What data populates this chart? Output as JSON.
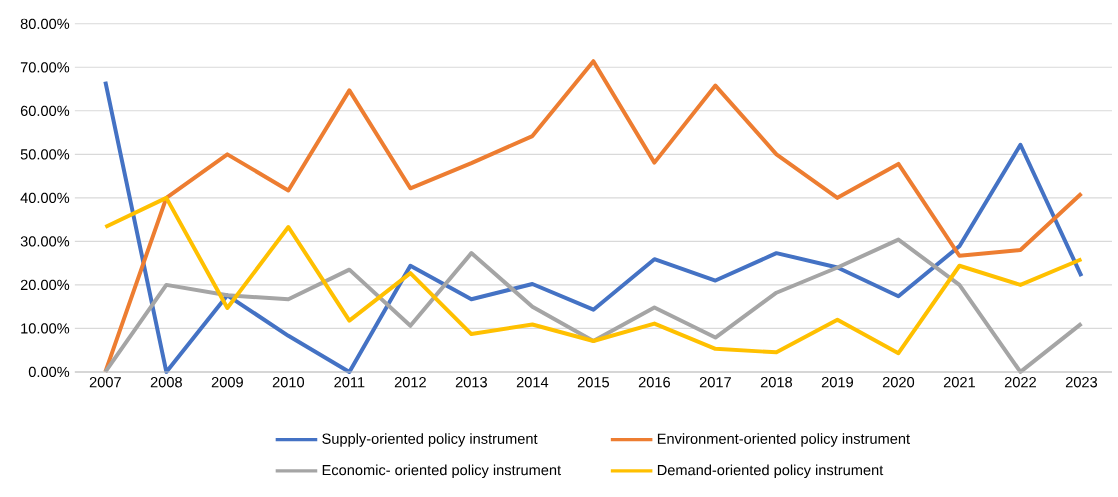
{
  "chart_data": {
    "type": "line",
    "categories": [
      "2007",
      "2008",
      "2009",
      "2010",
      "2011",
      "2012",
      "2013",
      "2014",
      "2015",
      "2016",
      "2017",
      "2018",
      "2019",
      "2020",
      "2021",
      "2022",
      "2023"
    ],
    "series": [
      {
        "name": "Supply-oriented policy instrument",
        "color": "#4472c4",
        "values": [
          66.7,
          0,
          17.6,
          8.3,
          0,
          24.4,
          16.7,
          20.2,
          14.3,
          25.9,
          21.0,
          27.3,
          24.0,
          17.4,
          28.9,
          52.2,
          22.0
        ]
      },
      {
        "name": "Environment-oriented policy instrument",
        "color": "#ed7d31",
        "values": [
          0,
          40.0,
          50.0,
          41.7,
          64.7,
          42.2,
          48.0,
          54.2,
          71.4,
          48.1,
          65.8,
          50.0,
          40.0,
          47.8,
          26.7,
          28.0,
          41.0
        ]
      },
      {
        "name": "Economic- oriented policy instrument",
        "color": "#a5a5a5",
        "values": [
          0,
          20.0,
          17.6,
          16.7,
          23.5,
          10.6,
          27.3,
          15.0,
          7.1,
          14.8,
          7.9,
          18.2,
          24.0,
          30.4,
          20.0,
          0,
          11.1
        ]
      },
      {
        "name": "Demand-oriented policy instrument",
        "color": "#ffc000",
        "values": [
          33.3,
          40.0,
          14.7,
          33.3,
          11.8,
          22.7,
          8.7,
          10.9,
          7.1,
          11.1,
          5.3,
          4.5,
          12.0,
          4.3,
          24.4,
          20.0,
          25.9
        ]
      }
    ],
    "ylim": [
      0,
      80
    ],
    "yticks": [
      {
        "value": 0,
        "label": "0.00%"
      },
      {
        "value": 10,
        "label": "10.00%"
      },
      {
        "value": 20,
        "label": "20.00%"
      },
      {
        "value": 30,
        "label": "30.00%"
      },
      {
        "value": 40,
        "label": "40.00%"
      },
      {
        "value": 50,
        "label": "50.00%"
      },
      {
        "value": 60,
        "label": "60.00%"
      },
      {
        "value": 70,
        "label": "70.00%"
      },
      {
        "value": 80,
        "label": "80.00%"
      }
    ],
    "grid": "y",
    "legend": "bottom",
    "marker": "none",
    "line_style": "solid"
  }
}
